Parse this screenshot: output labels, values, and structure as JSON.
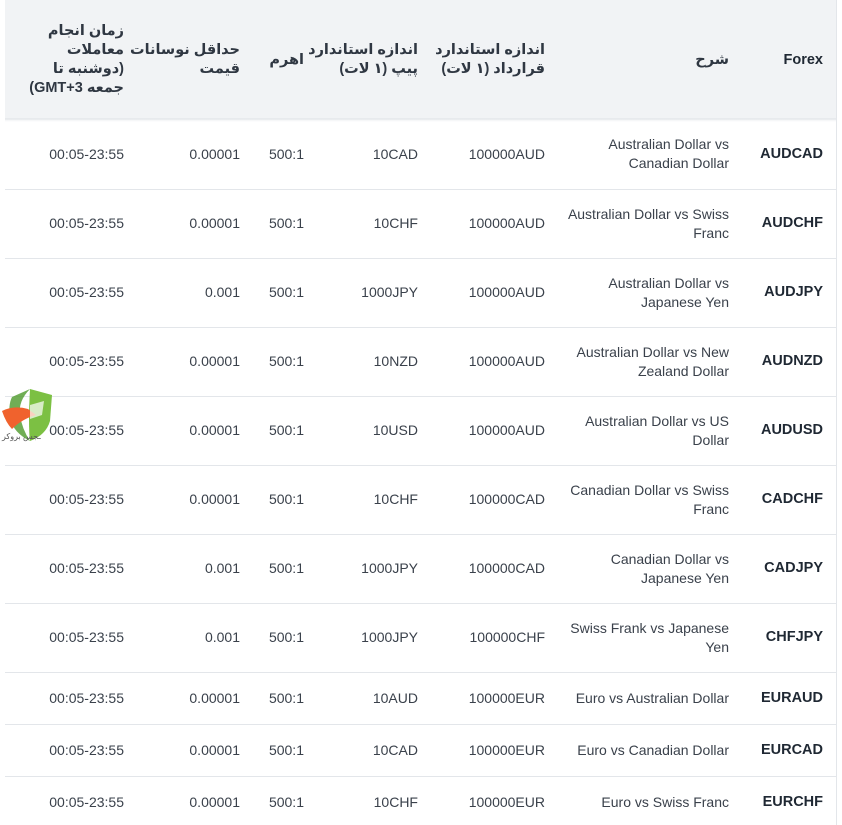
{
  "headers": {
    "time": "زمان انجام معاملات (دوشنبه تا جمعه GMT+3)",
    "min_fluctuation": "حداقل نوسانات قیمت",
    "leverage": "اهرم",
    "pip_size": "اندازه استاندارد پیپ (۱ لات)",
    "contract_size": "اندازه استاندارد قرارداد (۱ لات)",
    "description": "شرح",
    "symbol": "Forex"
  },
  "rows": [
    {
      "symbol": "AUDCAD",
      "description": "Australian Dollar vs Canadian Dollar",
      "contract": "100000AUD",
      "pip": "10CAD",
      "leverage": "500:1",
      "min": "0.00001",
      "time": "00:05-23:55"
    },
    {
      "symbol": "AUDCHF",
      "description": "Australian Dollar vs Swiss Franc",
      "contract": "100000AUD",
      "pip": "10CHF",
      "leverage": "500:1",
      "min": "0.00001",
      "time": "00:05-23:55"
    },
    {
      "symbol": "AUDJPY",
      "description": "Australian Dollar vs Japanese Yen",
      "contract": "100000AUD",
      "pip": "1000JPY",
      "leverage": "500:1",
      "min": "0.001",
      "time": "00:05-23:55"
    },
    {
      "symbol": "AUDNZD",
      "description": "Australian Dollar vs New Zealand Dollar",
      "contract": "100000AUD",
      "pip": "10NZD",
      "leverage": "500:1",
      "min": "0.00001",
      "time": "00:05-23:55"
    },
    {
      "symbol": "AUDUSD",
      "description": "Australian Dollar vs US Dollar",
      "contract": "100000AUD",
      "pip": "10USD",
      "leverage": "500:1",
      "min": "0.00001",
      "time": "00:05-23:55"
    },
    {
      "symbol": "CADCHF",
      "description": "Canadian Dollar vs Swiss Franc",
      "contract": "100000CAD",
      "pip": "10CHF",
      "leverage": "500:1",
      "min": "0.00001",
      "time": "00:05-23:55"
    },
    {
      "symbol": "CADJPY",
      "description": "Canadian Dollar vs Japanese Yen",
      "contract": "100000CAD",
      "pip": "1000JPY",
      "leverage": "500:1",
      "min": "0.001",
      "time": "00:05-23:55"
    },
    {
      "symbol": "CHFJPY",
      "description": "Swiss Frank vs Japanese Yen",
      "contract": "100000CHF",
      "pip": "1000JPY",
      "leverage": "500:1",
      "min": "0.001",
      "time": "00:05-23:55"
    },
    {
      "symbol": "EURAUD",
      "description": "Euro vs Australian Dollar",
      "contract": "100000EUR",
      "pip": "10AUD",
      "leverage": "500:1",
      "min": "0.00001",
      "time": "00:05-23:55"
    },
    {
      "symbol": "EURCAD",
      "description": "Euro vs Canadian Dollar",
      "contract": "100000EUR",
      "pip": "10CAD",
      "leverage": "500:1",
      "min": "0.00001",
      "time": "00:05-23:55"
    },
    {
      "symbol": "EURCHF",
      "description": "Euro vs Swiss Franc",
      "contract": "100000EUR",
      "pip": "10CHF",
      "leverage": "500:1",
      "min": "0.00001",
      "time": "00:05-23:55"
    }
  ],
  "watermark": {
    "text": "ـجس بروکر",
    "icon": "shield-logo-icon",
    "colors": {
      "green": "#7cc043",
      "orange": "#f0622d"
    }
  }
}
